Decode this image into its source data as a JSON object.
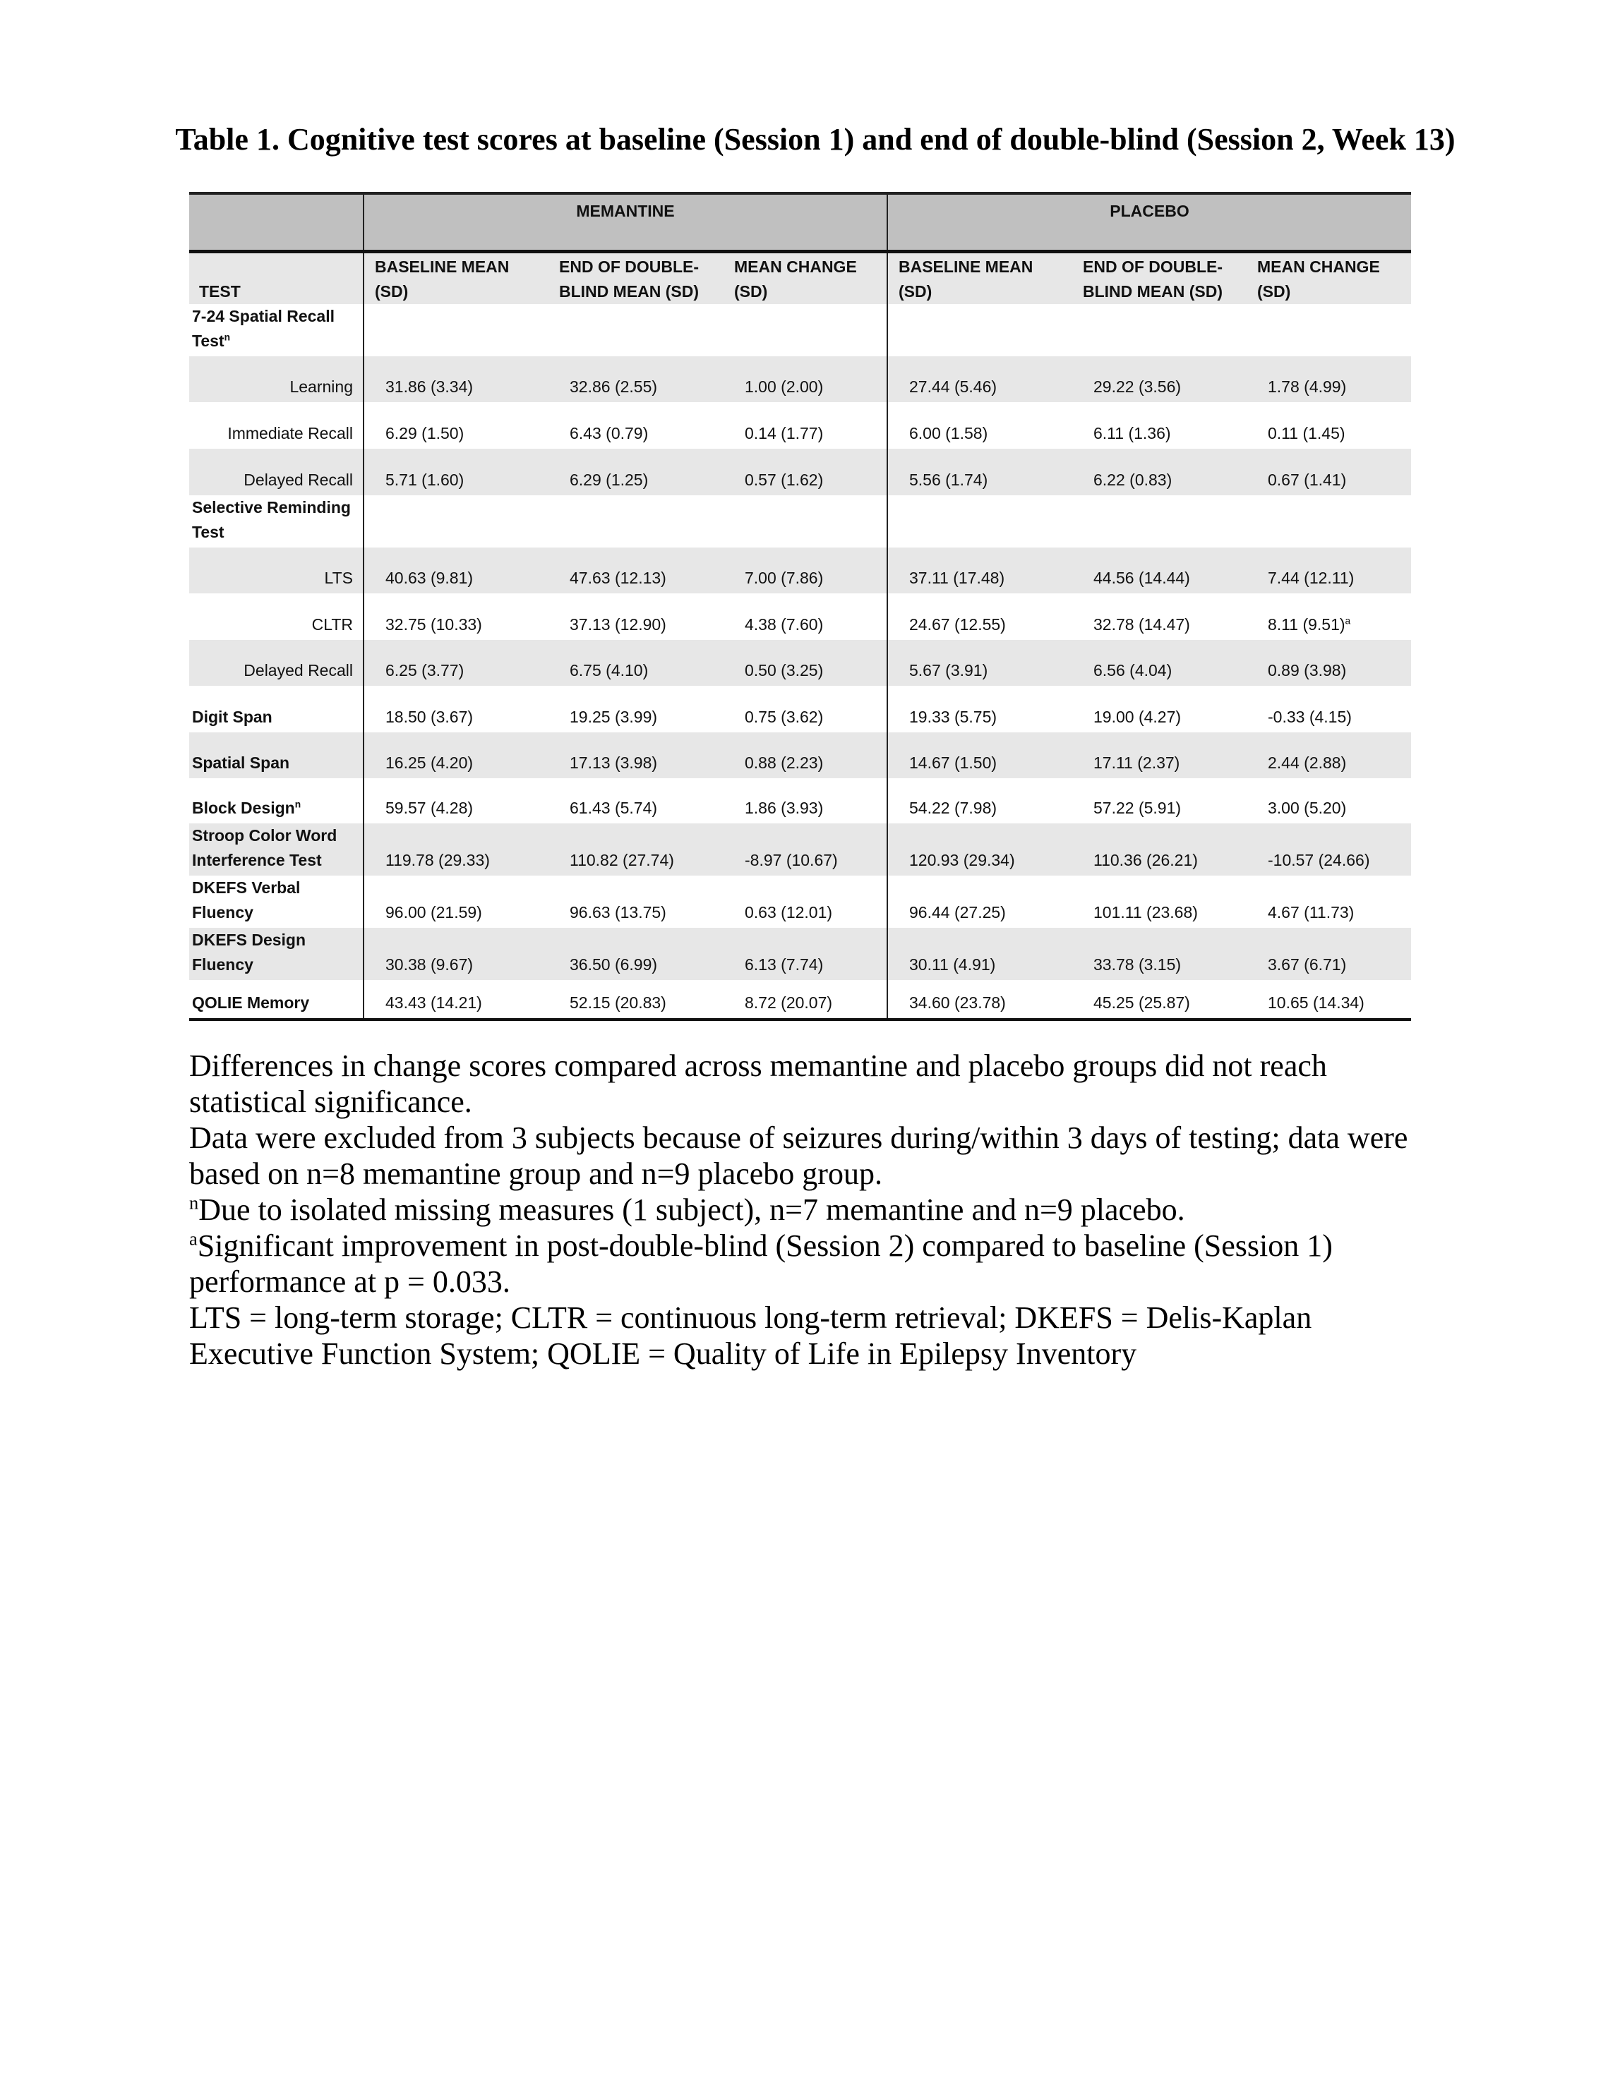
{
  "title": "Table 1. Cognitive test scores at baseline (Session 1) and end of double-blind (Session 2, Week 13)",
  "table": {
    "groups": [
      "MEMANTINE",
      "PLACEBO"
    ],
    "test_header": "TEST",
    "columns": [
      [
        "BASELINE MEAN",
        "(SD)"
      ],
      [
        "END OF DOUBLE-",
        "BLIND MEAN (SD)"
      ],
      [
        "MEAN CHANGE",
        "(SD)"
      ],
      [
        "BASELINE MEAN",
        "(SD)"
      ],
      [
        "END OF DOUBLE-",
        "BLIND MEAN (SD)"
      ],
      [
        "MEAN CHANGE",
        "(SD)"
      ]
    ],
    "rows": [
      {
        "label": "7-24 Spatial Recall Test",
        "sup": "n",
        "type": "section",
        "values": []
      },
      {
        "label": "Learning",
        "type": "sub",
        "values": [
          "31.86 (3.34)",
          "32.86 (2.55)",
          "1.00 (2.00)",
          "27.44 (5.46)",
          "29.22 (3.56)",
          "1.78 (4.99)"
        ]
      },
      {
        "label": "Immediate Recall",
        "type": "sub",
        "values": [
          "6.29 (1.50)",
          "6.43 (0.79)",
          "0.14 (1.77)",
          "6.00 (1.58)",
          "6.11 (1.36)",
          "0.11 (1.45)"
        ]
      },
      {
        "label": "Delayed Recall",
        "type": "sub",
        "values": [
          "5.71 (1.60)",
          "6.29 (1.25)",
          "0.57 (1.62)",
          "5.56 (1.74)",
          "6.22 (0.83)",
          "0.67 (1.41)"
        ]
      },
      {
        "label": "Selective Reminding Test",
        "type": "section",
        "values": []
      },
      {
        "label": "LTS",
        "type": "sub",
        "values": [
          "40.63 (9.81)",
          "47.63 (12.13)",
          "7.00 (7.86)",
          "37.11 (17.48)",
          "44.56 (14.44)",
          "7.44 (12.11)"
        ]
      },
      {
        "label": "CLTR",
        "type": "sub",
        "values": [
          "32.75 (10.33)",
          "37.13 (12.90)",
          "4.38 (7.60)",
          "24.67 (12.55)",
          "32.78 (14.47)",
          "8.11 (9.51)"
        ],
        "value_sup": "a"
      },
      {
        "label": "Delayed Recall",
        "type": "sub",
        "values": [
          "6.25 (3.77)",
          "6.75 (4.10)",
          "0.50 (3.25)",
          "5.67 (3.91)",
          "6.56 (4.04)",
          "0.89 (3.98)"
        ]
      },
      {
        "label": "Digit Span",
        "type": "main",
        "values": [
          "18.50 (3.67)",
          "19.25 (3.99)",
          "0.75 (3.62)",
          "19.33 (5.75)",
          "19.00 (4.27)",
          "-0.33 (4.15)"
        ]
      },
      {
        "label": "Spatial Span",
        "type": "main",
        "values": [
          "16.25 (4.20)",
          "17.13 (3.98)",
          "0.88 (2.23)",
          "14.67 (1.50)",
          "17.11 (2.37)",
          "2.44 (2.88)"
        ]
      },
      {
        "label": "Block Design",
        "sup": "n",
        "type": "main",
        "values": [
          "59.57 (4.28)",
          "61.43 (5.74)",
          "1.86 (3.93)",
          "54.22 (7.98)",
          "57.22 (5.91)",
          "3.00 (5.20)"
        ]
      },
      {
        "label": "Stroop Color Word Interference Test",
        "type": "main",
        "values": [
          "119.78 (29.33)",
          "110.82 (27.74)",
          "-8.97 (10.67)",
          "120.93 (29.34)",
          "110.36 (26.21)",
          "-10.57 (24.66)"
        ]
      },
      {
        "label": "DKEFS Verbal Fluency",
        "type": "main",
        "values": [
          "96.00 (21.59)",
          "96.63 (13.75)",
          "0.63 (12.01)",
          "96.44 (27.25)",
          "101.11 (23.68)",
          "4.67 (11.73)"
        ]
      },
      {
        "label": "DKEFS Design Fluency",
        "type": "main",
        "values": [
          "30.38 (9.67)",
          "36.50 (6.99)",
          "6.13 (7.74)",
          "30.11 (4.91)",
          "33.78 (3.15)",
          "3.67 (6.71)"
        ]
      },
      {
        "label": "QOLIE Memory",
        "type": "main",
        "values": [
          "43.43 (14.21)",
          "52.15 (20.83)",
          "8.72 (20.07)",
          "34.60 (23.78)",
          "45.25 (25.87)",
          "10.65 (14.34)"
        ]
      }
    ]
  },
  "notes": [
    {
      "sup": "",
      "text": "Differences in change scores compared across memantine and placebo groups did not reach statistical significance."
    },
    {
      "sup": "",
      "text": "Data were excluded from 3 subjects because of seizures during/within 3 days of testing; data were based on n=8 memantine group and n=9 placebo group."
    },
    {
      "sup": "n",
      "text": "Due to isolated missing measures (1 subject), n=7 memantine and n=9 placebo."
    },
    {
      "sup": "a",
      "text": "Significant improvement in post-double-blind (Session 2) compared to baseline (Session 1) performance at p = 0.033."
    },
    {
      "sup": "",
      "text": "LTS = long-term storage; CLTR = continuous long-term retrieval; DKEFS = Delis-Kaplan Executive Function System; QOLIE = Quality of Life in Epilepsy Inventory"
    }
  ]
}
